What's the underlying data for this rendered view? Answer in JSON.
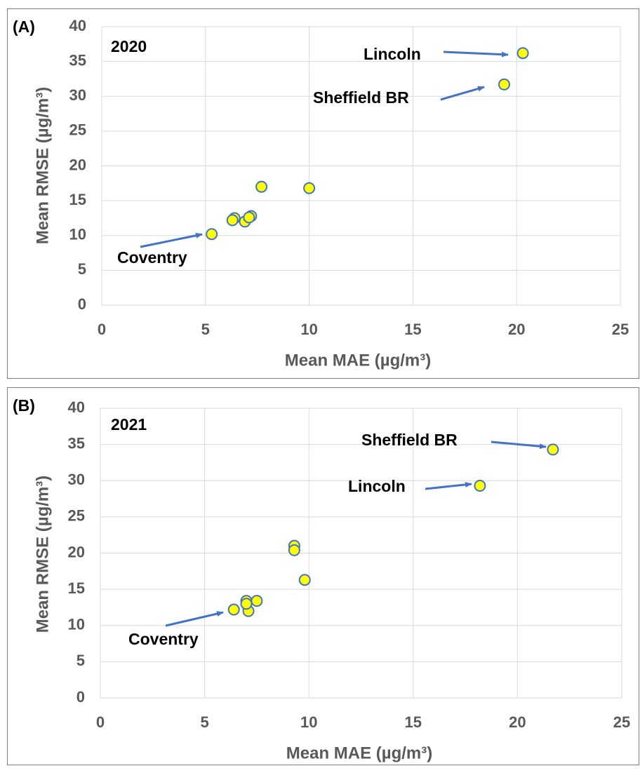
{
  "chart_data": [
    {
      "type": "scatter",
      "panel_label": "(A)",
      "title": "2020",
      "x_label": "Mean MAE (µg/m³)",
      "y_label": "Mean RMSE (µg/m³)",
      "x": [
        5.3,
        6.4,
        6.3,
        6.9,
        7.2,
        7.1,
        7.7,
        10.0,
        19.4,
        20.3
      ],
      "values": [
        10.2,
        12.5,
        12.2,
        12.0,
        12.8,
        12.6,
        17.0,
        16.8,
        31.7,
        36.2
      ],
      "color": "#ffff00",
      "edge_color": "#4472c4",
      "xlim": [
        0,
        25
      ],
      "xticks": [
        0,
        5,
        10,
        15,
        20,
        25
      ],
      "ylim": [
        0,
        40
      ],
      "yticks": [
        0,
        5,
        10,
        15,
        20,
        25,
        30,
        35,
        40
      ],
      "grid": true,
      "annotations": [
        "Lincoln",
        "Sheffield BR",
        "Coventry"
      ]
    },
    {
      "type": "scatter",
      "panel_label": "(B)",
      "title": "2021",
      "x_label": "Mean MAE (µg/m³)",
      "y_label": "Mean RMSE (µg/m³)",
      "x": [
        6.4,
        7.0,
        7.1,
        7.5,
        7.0,
        9.3,
        9.3,
        9.8,
        18.2,
        21.7
      ],
      "values": [
        12.2,
        13.4,
        12.0,
        13.4,
        13.0,
        21.0,
        20.4,
        16.3,
        29.3,
        34.3
      ],
      "color": "#ffff00",
      "edge_color": "#4472c4",
      "xlim": [
        0,
        25
      ],
      "xticks": [
        0,
        5,
        10,
        15,
        20,
        25
      ],
      "ylim": [
        0,
        40
      ],
      "yticks": [
        0,
        5,
        10,
        15,
        20,
        25,
        30,
        35,
        40
      ],
      "grid": true,
      "annotations": [
        "Sheffield BR",
        "Lincoln",
        "Coventry"
      ]
    }
  ]
}
